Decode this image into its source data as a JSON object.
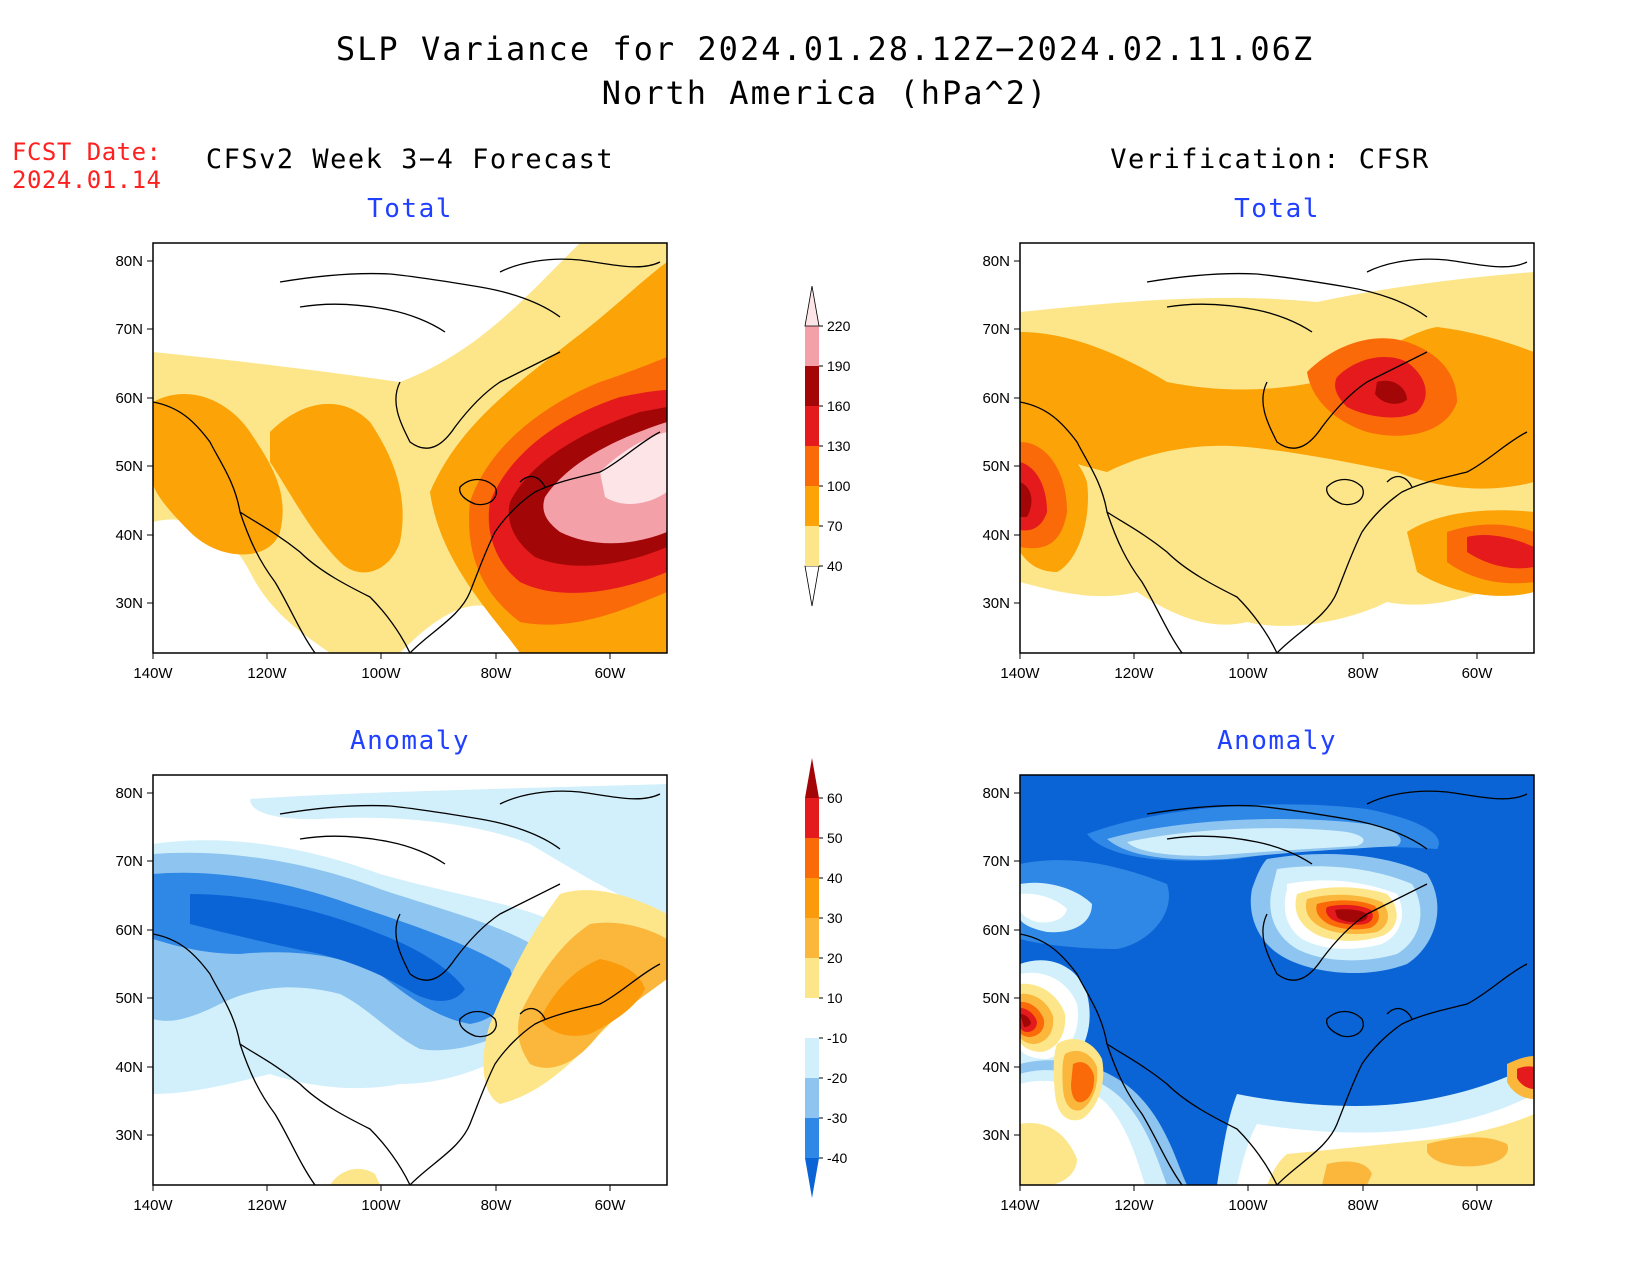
{
  "header": {
    "title": "SLP Variance for 2024.01.28.12Z−2024.02.11.06Z",
    "subtitle": "North America (hPa^2)"
  },
  "fcst": {
    "label": "FCST Date:",
    "date": "2024.01.14"
  },
  "columns": {
    "left": "CFSv2 Week 3−4 Forecast",
    "right": "Verification: CFSR"
  },
  "panels": [
    {
      "id": "forecast-total",
      "title": "Total"
    },
    {
      "id": "verification-total",
      "title": "Total"
    },
    {
      "id": "forecast-anomaly",
      "title": "Anomaly"
    },
    {
      "id": "verification-anomaly",
      "title": "Anomaly"
    }
  ],
  "axes": {
    "lat_labels": [
      "80N",
      "70N",
      "60N",
      "50N",
      "40N",
      "30N"
    ],
    "lon_labels": [
      "140W",
      "120W",
      "100W",
      "80W",
      "60W"
    ],
    "lat_range": [
      25,
      85
    ],
    "lon_range": [
      -140,
      -50
    ]
  },
  "colorbars": {
    "total": {
      "levels": [
        "40",
        "70",
        "100",
        "130",
        "160",
        "190",
        "220"
      ],
      "colors": [
        "#fde68a",
        "#fba307",
        "#fb6a09",
        "#e41a1c",
        "#a30606",
        "#f4a0a8",
        "#fde4e6"
      ]
    },
    "anomaly": {
      "levels": [
        "-40",
        "-30",
        "-20",
        "-10",
        "10",
        "20",
        "30",
        "40",
        "50",
        "60"
      ],
      "colors": [
        "#0a64d6",
        "#2f88e6",
        "#8ec4f0",
        "#d2f0fb",
        "#ffffff",
        "#fde68a",
        "#fbb63c",
        "#fb9a0a",
        "#fb6a09",
        "#e41a1c",
        "#a30606"
      ]
    }
  }
}
